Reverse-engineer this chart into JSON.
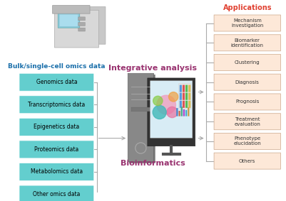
{
  "left_boxes": [
    "Genomics data",
    "Transcriptomics data",
    "Epigenetics data",
    "Proteomics data",
    "Metabolomics data",
    "Other omics data"
  ],
  "right_boxes": [
    "Mechanism\ninvestigation",
    "Biomarker\nidentification",
    "Clustering",
    "Diagnosis",
    "Prognosis",
    "Treatment\nevaluation",
    "Phenotype\nelucidation",
    "Others"
  ],
  "left_title": "Bulk/single-cell omics data",
  "center_top": "Integrative analysis",
  "center_bottom": "Bioinformatics",
  "right_title": "Applications",
  "left_box_color": "#63cece",
  "left_box_edge": "#63cece",
  "right_box_color": "#fde8d8",
  "right_box_edge": "#d4b49a",
  "left_title_color": "#1a6faa",
  "center_top_color": "#993370",
  "center_bottom_color": "#993370",
  "right_title_color": "#e04030",
  "arrow_color": "#aaaaaa",
  "background": "#ffffff",
  "tower_color": "#888888",
  "tower_dark": "#555555",
  "monitor_color": "#444444",
  "screen_color": "#ddeeff"
}
